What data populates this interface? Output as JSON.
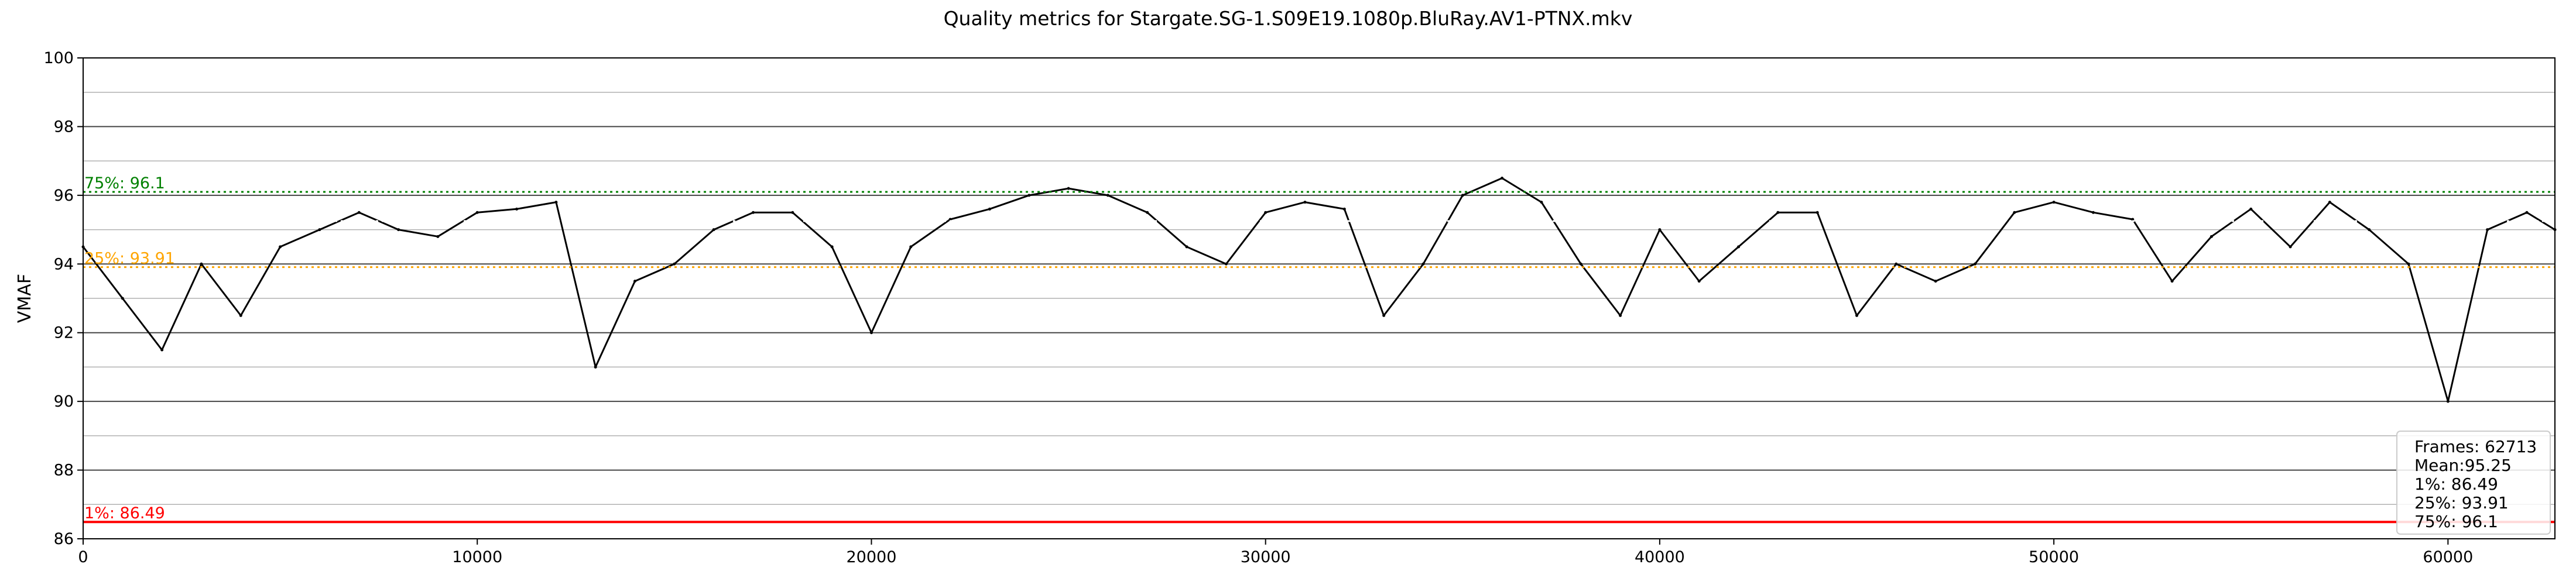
{
  "chart_data": {
    "type": "line",
    "title": "Quality metrics for Stargate.SG-1.S09E19.1080p.BluRay.AV1-PTNX.mkv",
    "xlabel": "",
    "ylabel": "VMAF",
    "xlim": [
      0,
      62713
    ],
    "ylim": [
      86,
      100
    ],
    "x_ticks": [
      0,
      10000,
      20000,
      30000,
      40000,
      50000,
      60000
    ],
    "y_ticks": [
      86,
      88,
      90,
      92,
      94,
      96,
      98,
      100
    ],
    "grid": true,
    "series": [
      {
        "color": "#000000",
        "x": [
          0,
          1000,
          2000,
          3000,
          4000,
          5000,
          6000,
          7000,
          8000,
          9000,
          10000,
          11000,
          12000,
          13000,
          14000,
          15000,
          16000,
          17000,
          18000,
          19000,
          20000,
          21000,
          22000,
          23000,
          24000,
          25000,
          26000,
          27000,
          28000,
          29000,
          30000,
          31000,
          32000,
          33000,
          34000,
          35000,
          36000,
          37000,
          38000,
          39000,
          40000,
          41000,
          42000,
          43000,
          44000,
          45000,
          46000,
          47000,
          48000,
          49000,
          50000,
          51000,
          52000,
          53000,
          54000,
          55000,
          56000,
          57000,
          58000,
          59000,
          60000,
          61000,
          62000,
          62713
        ],
        "y": [
          94.5,
          93.0,
          91.5,
          94.0,
          92.5,
          94.5,
          95.0,
          95.5,
          95.0,
          94.8,
          95.5,
          95.6,
          95.8,
          91.0,
          93.5,
          94.0,
          95.0,
          95.5,
          95.5,
          94.5,
          92.0,
          94.5,
          95.3,
          95.6,
          96.0,
          96.2,
          96.0,
          95.5,
          94.5,
          94.0,
          95.5,
          95.8,
          95.6,
          92.5,
          94.0,
          96.0,
          96.5,
          95.8,
          94.0,
          92.5,
          95.0,
          93.5,
          94.5,
          95.5,
          95.5,
          92.5,
          94.0,
          93.5,
          94.0,
          95.5,
          95.8,
          95.5,
          95.3,
          93.5,
          94.8,
          95.6,
          94.5,
          95.8,
          95.0,
          94.0,
          90.0,
          95.0,
          95.5,
          95.0
        ]
      }
    ],
    "reference_lines": [
      {
        "key": "p75",
        "label": "75%: 96.1",
        "value": 96.1,
        "color": "#008000",
        "style": "dotted"
      },
      {
        "key": "mean",
        "label": "Mean: 95.25",
        "value": 95.25,
        "color": "#ffffff",
        "style": "dotted"
      },
      {
        "key": "p25",
        "label": "25%: 93.91",
        "value": 93.91,
        "color": "#ffa500",
        "style": "dotted"
      },
      {
        "key": "p1",
        "label": "1%: 86.49",
        "value": 86.49,
        "color": "#ff0000",
        "style": "solid"
      }
    ],
    "stats_box": {
      "location": "lower right",
      "lines": [
        "Frames: 62713",
        "Mean:95.25",
        "1%: 86.49",
        "25%: 93.91",
        "75%: 96.1"
      ]
    }
  }
}
